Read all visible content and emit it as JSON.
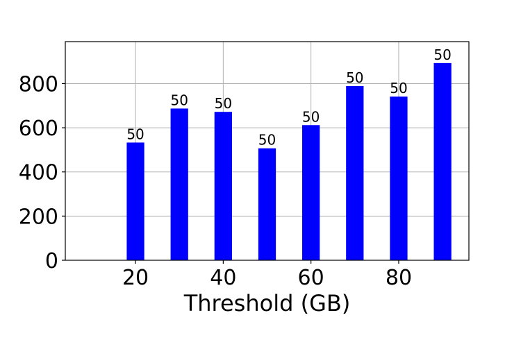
{
  "chart_data": {
    "type": "bar",
    "x": [
      20,
      30,
      40,
      50,
      60,
      70,
      80,
      90
    ],
    "values": [
      533,
      687,
      672,
      507,
      612,
      789,
      741,
      893
    ],
    "bar_labels": [
      "50",
      "50",
      "50",
      "50",
      "50",
      "50",
      "50",
      "50"
    ],
    "bar_color": "#0000ff",
    "xlabel": "Threshold (GB)",
    "ylabel": "",
    "xlim": [
      4,
      96
    ],
    "ylim": [
      0,
      990
    ],
    "xticks": [
      20,
      40,
      60,
      80
    ],
    "yticks": [
      0,
      200,
      400,
      600,
      800
    ],
    "grid": true
  }
}
